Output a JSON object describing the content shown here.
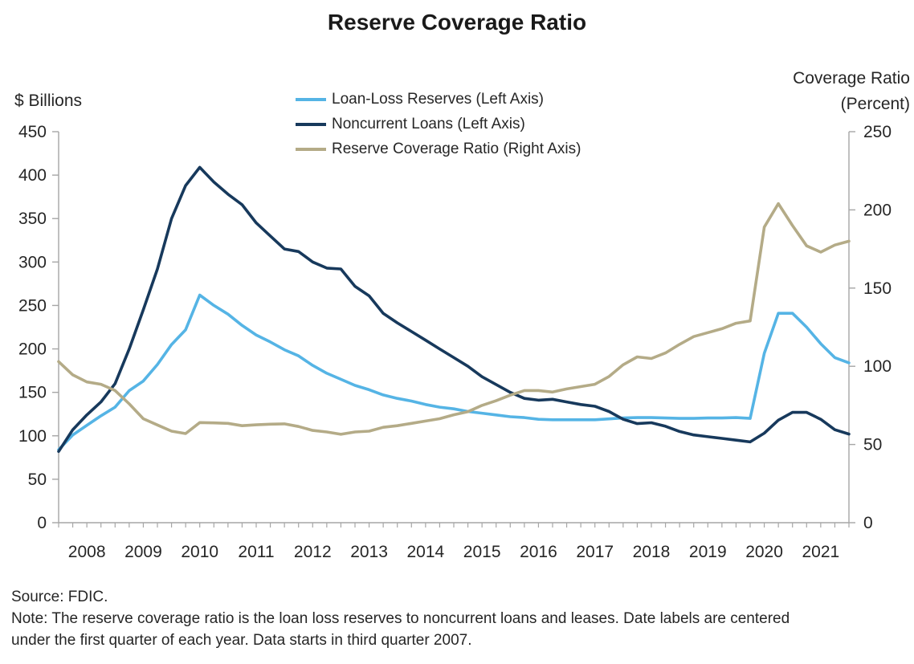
{
  "title": "Reserve Coverage Ratio",
  "left_axis_title": "$ Billions",
  "right_axis_title_line1": "Coverage Ratio",
  "right_axis_title_line2": "(Percent)",
  "footer": {
    "source_line": "Source: FDIC.",
    "note_line1": "Note: The reserve coverage ratio is the loan loss reserves to noncurrent loans and leases. Date labels are centered",
    "note_line2": "under the first quarter of each year. Data starts in third quarter 2007."
  },
  "colors": {
    "loan_loss_reserves": "#55B4E5",
    "noncurrent_loans": "#17395C",
    "coverage_ratio": "#B4AB87",
    "axis_line": "#A6A6A6",
    "tick_label": "#262626"
  },
  "chart_data": {
    "type": "line",
    "title": "Reserve Coverage Ratio",
    "x_categories": [
      "2007Q3",
      "2007Q4",
      "2008Q1",
      "2008Q2",
      "2008Q3",
      "2008Q4",
      "2009Q1",
      "2009Q2",
      "2009Q3",
      "2009Q4",
      "2010Q1",
      "2010Q2",
      "2010Q3",
      "2010Q4",
      "2011Q1",
      "2011Q2",
      "2011Q3",
      "2011Q4",
      "2012Q1",
      "2012Q2",
      "2012Q3",
      "2012Q4",
      "2013Q1",
      "2013Q2",
      "2013Q3",
      "2013Q4",
      "2014Q1",
      "2014Q2",
      "2014Q3",
      "2014Q4",
      "2015Q1",
      "2015Q2",
      "2015Q3",
      "2015Q4",
      "2016Q1",
      "2016Q2",
      "2016Q3",
      "2016Q4",
      "2017Q1",
      "2017Q2",
      "2017Q3",
      "2017Q4",
      "2018Q1",
      "2018Q2",
      "2018Q3",
      "2018Q4",
      "2019Q1",
      "2019Q2",
      "2019Q3",
      "2019Q4",
      "2020Q1",
      "2020Q2",
      "2020Q3",
      "2020Q4",
      "2021Q1",
      "2021Q2",
      "2021Q3"
    ],
    "x_year_labels": [
      "2008",
      "2009",
      "2010",
      "2011",
      "2012",
      "2013",
      "2014",
      "2015",
      "2016",
      "2017",
      "2018",
      "2019",
      "2020",
      "2021"
    ],
    "note_on_labels": "Date labels are centered under the first quarter of each year",
    "left_axis": {
      "title": "$ Billions",
      "min": 0,
      "max": 450,
      "step": 50,
      "tick_labels": [
        "450",
        "400",
        "350",
        "300",
        "250",
        "200",
        "150",
        "100",
        "50",
        "0"
      ]
    },
    "right_axis": {
      "title": "Coverage Ratio (Percent)",
      "min": 0,
      "max": 250,
      "step": 50,
      "tick_labels": [
        "250",
        "200",
        "150",
        "100",
        "50",
        "0"
      ]
    },
    "grid": false,
    "legend_position": "top-center",
    "series": [
      {
        "name": "Loan-Loss Reserves (Left Axis)",
        "axis": "left",
        "color": "#55B4E5",
        "values": [
          84,
          101,
          112,
          123,
          133,
          152,
          163,
          182,
          205,
          222,
          262,
          250,
          240,
          227,
          216,
          208,
          199,
          192,
          181,
          172,
          165,
          158,
          153,
          147,
          143,
          140,
          136,
          133,
          131,
          128,
          126,
          124,
          122,
          121,
          119,
          118.5,
          118.5,
          118.5,
          118.5,
          119.5,
          120.5,
          121,
          121,
          120.5,
          120,
          120,
          120.5,
          120.5,
          121,
          120,
          195,
          241,
          241,
          225,
          206,
          190,
          184
        ]
      },
      {
        "name": "Noncurrent Loans (Left Axis)",
        "axis": "left",
        "color": "#17395C",
        "values": [
          82,
          107,
          124,
          139,
          160,
          200,
          245,
          292,
          350,
          388,
          409,
          392,
          378,
          366,
          345,
          330,
          315,
          312,
          300,
          293,
          292,
          272,
          261,
          241,
          230,
          220,
          210,
          200,
          190,
          180,
          168,
          159,
          150,
          143,
          141,
          142,
          139,
          136,
          134,
          128,
          119,
          114,
          115,
          111,
          105,
          101,
          99,
          97,
          95,
          93,
          103,
          118,
          127,
          127,
          119,
          107,
          102
        ]
      },
      {
        "name": "Reserve Coverage Ratio (Right Axis)",
        "axis": "right",
        "color": "#B4AB87",
        "values": [
          103,
          94.5,
          90,
          88.5,
          84.5,
          76,
          66.5,
          62.5,
          58.5,
          57,
          64,
          63.8,
          63.5,
          62,
          62.6,
          63,
          63.2,
          61.5,
          59,
          58,
          56.5,
          58,
          58.5,
          61,
          62,
          63.5,
          65,
          66.5,
          69,
          71,
          75,
          78,
          81.5,
          84.5,
          84.5,
          83.5,
          85.5,
          87,
          88.5,
          93.5,
          101,
          106,
          105,
          108.5,
          114,
          119,
          121.5,
          124,
          127.5,
          129,
          189,
          204,
          190,
          177,
          173,
          177.5,
          180
        ]
      }
    ]
  }
}
